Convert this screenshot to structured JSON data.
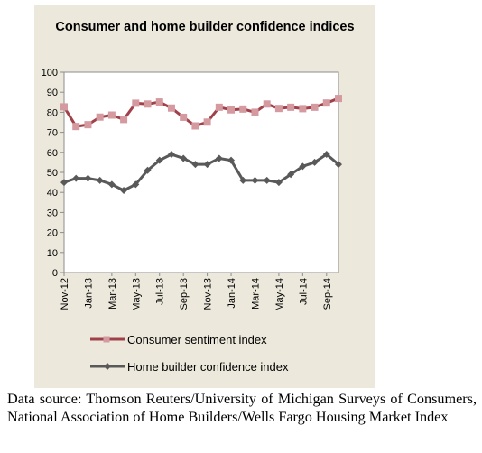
{
  "chart_data": {
    "type": "line",
    "title": "Consumer and home builder confidence indices",
    "categories": [
      "Nov-12",
      "Dec-12",
      "Jan-13",
      "Feb-13",
      "Mar-13",
      "Apr-13",
      "May-13",
      "Jun-13",
      "Jul-13",
      "Aug-13",
      "Sep-13",
      "Oct-13",
      "Nov-13",
      "Dec-13",
      "Jan-14",
      "Feb-14",
      "Mar-14",
      "Apr-14",
      "May-14",
      "Jun-14",
      "Jul-14",
      "Aug-14",
      "Sep-14",
      "Oct-14"
    ],
    "tick_labels": [
      "Nov-12",
      "Jan-13",
      "Mar-13",
      "May-13",
      "Jul-13",
      "Sep-13",
      "Nov-13",
      "Jan-14",
      "Mar-14",
      "May-14",
      "Jul-14",
      "Sep-14"
    ],
    "ylim": [
      0,
      100
    ],
    "yticks": [
      0,
      10,
      20,
      30,
      40,
      50,
      60,
      70,
      80,
      90,
      100
    ],
    "grid": false,
    "legend_position": "bottom",
    "series": [
      {
        "name": "Consumer sentiment index",
        "color": "#a0414a",
        "marker": "square",
        "values": [
          82.7,
          72.9,
          73.8,
          77.6,
          78.6,
          76.4,
          84.5,
          84.1,
          85.1,
          82.1,
          77.5,
          73.2,
          75.1,
          82.5,
          81.2,
          81.6,
          80.0,
          84.1,
          81.9,
          82.5,
          81.8,
          82.5,
          84.6,
          86.9
        ]
      },
      {
        "name": "Home builder confidence index",
        "color": "#595959",
        "marker": "diamond",
        "values": [
          45,
          47,
          47,
          46,
          44,
          41,
          44,
          51,
          56,
          59,
          57,
          54,
          54,
          57,
          56,
          46,
          46,
          46,
          45,
          49,
          53,
          55,
          59,
          54
        ]
      }
    ]
  },
  "source_note": "Data source: Thomson Reuters/University of Michigan Surveys of Consumers, National Association of Home Builders/Wells Fargo Housing Market Index"
}
